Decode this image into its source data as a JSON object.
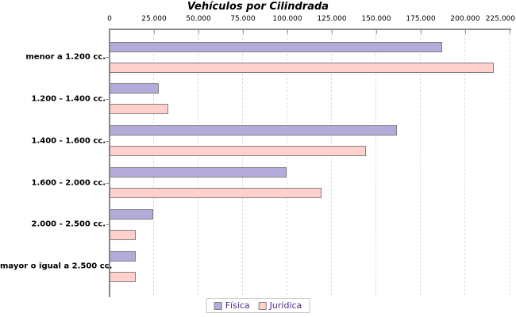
{
  "chart_data": {
    "type": "bar",
    "orientation": "horizontal",
    "title": "Vehículos por Cilindrada",
    "categories": [
      "menor a 1.200 cc.",
      "1.200 - 1.400 cc.",
      "1.400 - 1.600 cc.",
      "1.600 - 2.000 cc.",
      "2.000 - 2.500 cc.",
      "mayor o igual a 2.500 cc."
    ],
    "series": [
      {
        "name": "Física",
        "color": "#b5abda",
        "values": [
          187000,
          27500,
          161500,
          99500,
          24500,
          14700
        ]
      },
      {
        "name": "Jurídica",
        "color": "#ffd1cd",
        "values": [
          216000,
          33000,
          144000,
          119000,
          14700,
          14700
        ]
      }
    ],
    "xlim": [
      0,
      225000
    ],
    "x_ticks": [
      0,
      25000,
      50000,
      75000,
      100000,
      125000,
      150000,
      175000,
      200000,
      225000
    ],
    "x_tick_labels": [
      "0",
      "25.000",
      "50.000",
      "75.000",
      "100.000",
      "125.000",
      "150.000",
      "175.000",
      "200.000",
      "225.000"
    ],
    "grid": "vertical dashed",
    "legend_position": "bottom-center"
  },
  "colors": {
    "background": "#ffffff",
    "axis_line": "#8a8a8a",
    "tick_mark": "#9a9a9a",
    "gridline": "#dcdcdc",
    "bar_border": "#7f7f7f",
    "title_text": "#000000",
    "legend_text": "#4b2a84",
    "legend_border": "#c8c8c8"
  }
}
